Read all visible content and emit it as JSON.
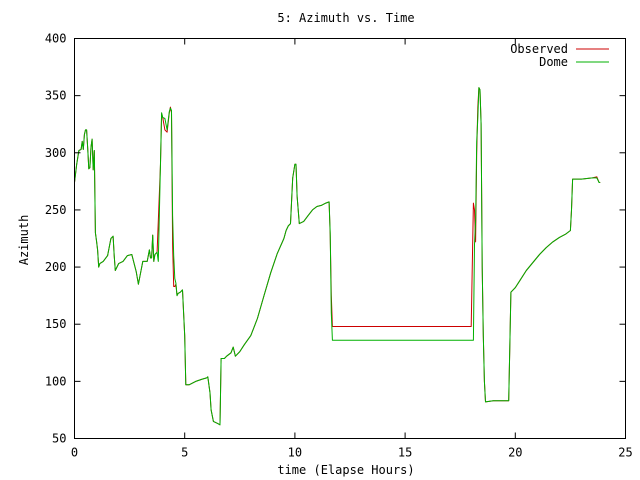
{
  "chart_data": {
    "type": "line",
    "title": "5: Azimuth vs. Time",
    "xlabel": "time (Elapse Hours)",
    "ylabel": "Azimuth",
    "xlim": [
      0,
      25
    ],
    "ylim": [
      50,
      400
    ],
    "x_ticks": [
      0,
      5,
      10,
      15,
      20,
      25
    ],
    "y_ticks": [
      50,
      100,
      150,
      200,
      250,
      300,
      350,
      400
    ],
    "grid": false,
    "legend_position": "top-right",
    "series": [
      {
        "name": "Observed",
        "color": "#cc0000",
        "points": [
          [
            0,
            274
          ],
          [
            0.1,
            290
          ],
          [
            0.2,
            302
          ],
          [
            0.3,
            303
          ],
          [
            0.35,
            310
          ],
          [
            0.4,
            303
          ],
          [
            0.45,
            316
          ],
          [
            0.5,
            320
          ],
          [
            0.55,
            320
          ],
          [
            0.6,
            304
          ],
          [
            0.65,
            286
          ],
          [
            0.7,
            287
          ],
          [
            0.75,
            305
          ],
          [
            0.8,
            312
          ],
          [
            0.85,
            285
          ],
          [
            0.9,
            302
          ],
          [
            0.95,
            230
          ],
          [
            1.0,
            223
          ],
          [
            1.05,
            215
          ],
          [
            1.1,
            200
          ],
          [
            1.15,
            203
          ],
          [
            1.3,
            205
          ],
          [
            1.5,
            210
          ],
          [
            1.65,
            225
          ],
          [
            1.75,
            227
          ],
          [
            1.8,
            210
          ],
          [
            1.85,
            197
          ],
          [
            2.0,
            203
          ],
          [
            2.2,
            205
          ],
          [
            2.4,
            210
          ],
          [
            2.6,
            211
          ],
          [
            2.8,
            196
          ],
          [
            2.9,
            185
          ],
          [
            3.0,
            195
          ],
          [
            3.1,
            205
          ],
          [
            3.3,
            205
          ],
          [
            3.4,
            215
          ],
          [
            3.45,
            208
          ],
          [
            3.5,
            208
          ],
          [
            3.55,
            228
          ],
          [
            3.6,
            205
          ],
          [
            3.65,
            211
          ],
          [
            3.75,
            213
          ],
          [
            3.9,
            290
          ],
          [
            3.95,
            334
          ],
          [
            4.0,
            331
          ],
          [
            4.1,
            320
          ],
          [
            4.2,
            318
          ],
          [
            4.3,
            335
          ],
          [
            4.35,
            340
          ],
          [
            4.4,
            335
          ],
          [
            4.45,
            220
          ],
          [
            4.5,
            183
          ],
          [
            4.55,
            183
          ],
          [
            4.6,
            185
          ],
          [
            4.65,
            175
          ],
          [
            4.7,
            177
          ],
          [
            4.8,
            178
          ],
          [
            4.9,
            180
          ],
          [
            4.95,
            160
          ],
          [
            5.0,
            140
          ],
          [
            5.05,
            97
          ],
          [
            5.2,
            97
          ],
          [
            5.5,
            100
          ],
          [
            5.8,
            102
          ],
          [
            6.0,
            103
          ],
          [
            6.05,
            104
          ],
          [
            6.15,
            90
          ],
          [
            6.2,
            75
          ],
          [
            6.3,
            65
          ],
          [
            6.5,
            63
          ],
          [
            6.6,
            62
          ],
          [
            6.65,
            120
          ],
          [
            6.8,
            120
          ],
          [
            6.9,
            122
          ],
          [
            7.1,
            125
          ],
          [
            7.2,
            130
          ],
          [
            7.3,
            122
          ],
          [
            7.5,
            126
          ],
          [
            7.7,
            132
          ],
          [
            8.0,
            140
          ],
          [
            8.3,
            155
          ],
          [
            8.6,
            175
          ],
          [
            8.9,
            195
          ],
          [
            9.2,
            212
          ],
          [
            9.5,
            225
          ],
          [
            9.6,
            232
          ],
          [
            9.7,
            236
          ],
          [
            9.8,
            238
          ],
          [
            9.9,
            278
          ],
          [
            10.0,
            290
          ],
          [
            10.05,
            290
          ],
          [
            10.1,
            262
          ],
          [
            10.2,
            238
          ],
          [
            10.4,
            240
          ],
          [
            10.6,
            245
          ],
          [
            10.8,
            250
          ],
          [
            11.0,
            253
          ],
          [
            11.2,
            254
          ],
          [
            11.4,
            256
          ],
          [
            11.55,
            257
          ],
          [
            11.6,
            228
          ],
          [
            11.65,
            175
          ],
          [
            11.7,
            148
          ],
          [
            12.0,
            148
          ],
          [
            14.0,
            148
          ],
          [
            15.0,
            148
          ],
          [
            16.0,
            148
          ],
          [
            17.0,
            148
          ],
          [
            18.0,
            148
          ],
          [
            18.1,
            256
          ],
          [
            18.15,
            250
          ],
          [
            18.2,
            222
          ],
          [
            18.25,
            300
          ],
          [
            18.3,
            340
          ],
          [
            18.35,
            357
          ],
          [
            18.4,
            355
          ],
          [
            18.45,
            325
          ],
          [
            18.5,
            200
          ],
          [
            18.55,
            140
          ],
          [
            18.6,
            100
          ],
          [
            18.65,
            82
          ],
          [
            19.0,
            83
          ],
          [
            19.5,
            83
          ],
          [
            19.7,
            83
          ],
          [
            19.75,
            130
          ],
          [
            19.8,
            178
          ],
          [
            20.0,
            182
          ],
          [
            20.2,
            188
          ],
          [
            20.5,
            197
          ],
          [
            20.8,
            204
          ],
          [
            21.1,
            211
          ],
          [
            21.4,
            217
          ],
          [
            21.7,
            222
          ],
          [
            22.0,
            226
          ],
          [
            22.3,
            229
          ],
          [
            22.5,
            232
          ],
          [
            22.55,
            250
          ],
          [
            22.6,
            277
          ],
          [
            23.0,
            277
          ],
          [
            23.5,
            278
          ],
          [
            23.7,
            279
          ],
          [
            23.8,
            274
          ],
          [
            23.85,
            274
          ]
        ]
      },
      {
        "name": "Dome",
        "color": "#00b000",
        "points": [
          [
            0,
            274
          ],
          [
            0.1,
            290
          ],
          [
            0.2,
            302
          ],
          [
            0.3,
            303
          ],
          [
            0.35,
            310
          ],
          [
            0.4,
            303
          ],
          [
            0.45,
            316
          ],
          [
            0.5,
            320
          ],
          [
            0.55,
            320
          ],
          [
            0.6,
            304
          ],
          [
            0.65,
            286
          ],
          [
            0.7,
            287
          ],
          [
            0.75,
            305
          ],
          [
            0.8,
            312
          ],
          [
            0.85,
            285
          ],
          [
            0.9,
            302
          ],
          [
            0.95,
            230
          ],
          [
            1.0,
            223
          ],
          [
            1.05,
            215
          ],
          [
            1.1,
            200
          ],
          [
            1.15,
            203
          ],
          [
            1.3,
            205
          ],
          [
            1.5,
            210
          ],
          [
            1.65,
            225
          ],
          [
            1.75,
            227
          ],
          [
            1.8,
            210
          ],
          [
            1.85,
            197
          ],
          [
            2.0,
            203
          ],
          [
            2.2,
            205
          ],
          [
            2.4,
            210
          ],
          [
            2.6,
            211
          ],
          [
            2.8,
            196
          ],
          [
            2.9,
            185
          ],
          [
            3.0,
            195
          ],
          [
            3.1,
            205
          ],
          [
            3.3,
            205
          ],
          [
            3.4,
            215
          ],
          [
            3.45,
            208
          ],
          [
            3.5,
            208
          ],
          [
            3.55,
            228
          ],
          [
            3.6,
            205
          ],
          [
            3.65,
            211
          ],
          [
            3.75,
            213
          ],
          [
            3.8,
            205
          ],
          [
            3.95,
            335
          ],
          [
            4.0,
            331
          ],
          [
            4.1,
            330
          ],
          [
            4.2,
            320
          ],
          [
            4.3,
            336
          ],
          [
            4.35,
            339
          ],
          [
            4.4,
            337
          ],
          [
            4.45,
            245
          ],
          [
            4.5,
            210
          ],
          [
            4.55,
            190
          ],
          [
            4.6,
            186
          ],
          [
            4.65,
            175
          ],
          [
            4.7,
            177
          ],
          [
            4.8,
            178
          ],
          [
            4.9,
            180
          ],
          [
            4.95,
            160
          ],
          [
            5.0,
            140
          ],
          [
            5.05,
            97
          ],
          [
            5.2,
            97
          ],
          [
            5.5,
            100
          ],
          [
            5.8,
            102
          ],
          [
            6.0,
            103
          ],
          [
            6.05,
            104
          ],
          [
            6.15,
            90
          ],
          [
            6.2,
            75
          ],
          [
            6.3,
            65
          ],
          [
            6.5,
            63
          ],
          [
            6.6,
            62
          ],
          [
            6.65,
            120
          ],
          [
            6.8,
            120
          ],
          [
            6.9,
            122
          ],
          [
            7.1,
            125
          ],
          [
            7.2,
            130
          ],
          [
            7.3,
            122
          ],
          [
            7.5,
            126
          ],
          [
            7.7,
            132
          ],
          [
            8.0,
            140
          ],
          [
            8.3,
            155
          ],
          [
            8.6,
            175
          ],
          [
            8.9,
            195
          ],
          [
            9.2,
            212
          ],
          [
            9.5,
            225
          ],
          [
            9.6,
            232
          ],
          [
            9.7,
            236
          ],
          [
            9.8,
            238
          ],
          [
            9.9,
            278
          ],
          [
            10.0,
            290
          ],
          [
            10.05,
            290
          ],
          [
            10.1,
            262
          ],
          [
            10.2,
            238
          ],
          [
            10.4,
            240
          ],
          [
            10.6,
            245
          ],
          [
            10.8,
            250
          ],
          [
            11.0,
            253
          ],
          [
            11.2,
            254
          ],
          [
            11.4,
            256
          ],
          [
            11.55,
            257
          ],
          [
            11.6,
            230
          ],
          [
            11.65,
            160
          ],
          [
            11.7,
            136
          ],
          [
            12.0,
            136
          ],
          [
            14.0,
            136
          ],
          [
            15.0,
            136
          ],
          [
            16.0,
            136
          ],
          [
            17.0,
            136
          ],
          [
            18.0,
            136
          ],
          [
            18.1,
            136
          ],
          [
            18.15,
            220
          ],
          [
            18.2,
            240
          ],
          [
            18.25,
            310
          ],
          [
            18.3,
            330
          ],
          [
            18.35,
            357
          ],
          [
            18.4,
            355
          ],
          [
            18.45,
            325
          ],
          [
            18.5,
            200
          ],
          [
            18.55,
            140
          ],
          [
            18.6,
            100
          ],
          [
            18.65,
            82
          ],
          [
            19.0,
            83
          ],
          [
            19.5,
            83
          ],
          [
            19.7,
            83
          ],
          [
            19.75,
            130
          ],
          [
            19.8,
            178
          ],
          [
            20.0,
            182
          ],
          [
            20.2,
            188
          ],
          [
            20.5,
            197
          ],
          [
            20.8,
            204
          ],
          [
            21.1,
            211
          ],
          [
            21.4,
            217
          ],
          [
            21.7,
            222
          ],
          [
            22.0,
            226
          ],
          [
            22.3,
            229
          ],
          [
            22.5,
            232
          ],
          [
            22.55,
            250
          ],
          [
            22.6,
            277
          ],
          [
            23.0,
            277
          ],
          [
            23.5,
            278
          ],
          [
            23.7,
            278
          ],
          [
            23.8,
            274
          ],
          [
            23.85,
            274
          ]
        ]
      }
    ]
  }
}
